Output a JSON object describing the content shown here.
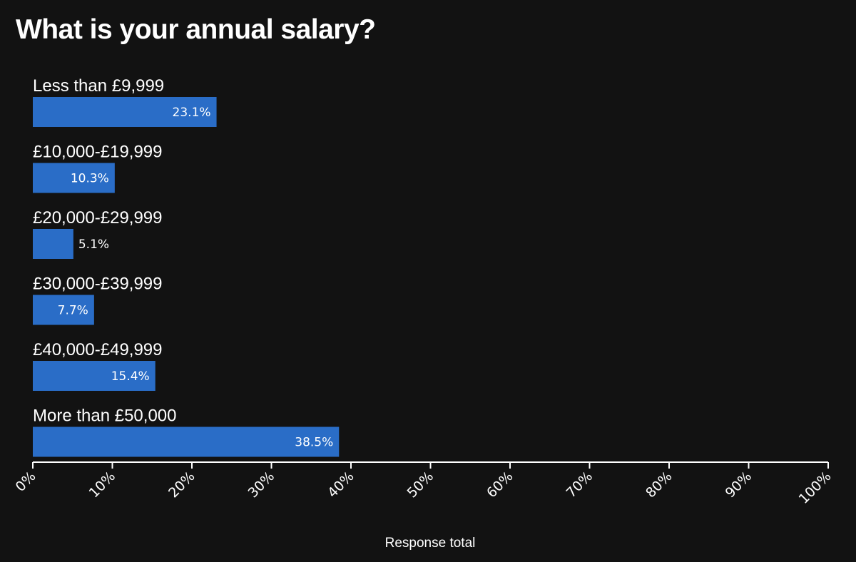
{
  "chart_data": {
    "type": "bar",
    "orientation": "horizontal",
    "title": "What is your annual salary?",
    "xlabel": "Response total",
    "ylabel": "",
    "categories": [
      "Less than £9,999",
      "£10,000-£19,999",
      "£20,000-£29,999",
      "£30,000-£39,999",
      "£40,000-£49,999",
      "More than £50,000"
    ],
    "values": [
      23.1,
      10.3,
      5.1,
      7.7,
      15.4,
      38.5
    ],
    "value_labels": [
      "23.1%",
      "10.3%",
      "5.1%",
      "7.7%",
      "15.4%",
      "38.5%"
    ],
    "xlim": [
      0,
      100
    ],
    "x_ticks": [
      "0%",
      "10%",
      "20%",
      "30%",
      "40%",
      "50%",
      "60%",
      "70%",
      "80%",
      "90%",
      "100%"
    ],
    "grid": false,
    "legend": "none",
    "colors": {
      "background": "#121212",
      "bar": "#2a6dc7",
      "text": "#ffffff",
      "axis": "#ffffff"
    }
  }
}
